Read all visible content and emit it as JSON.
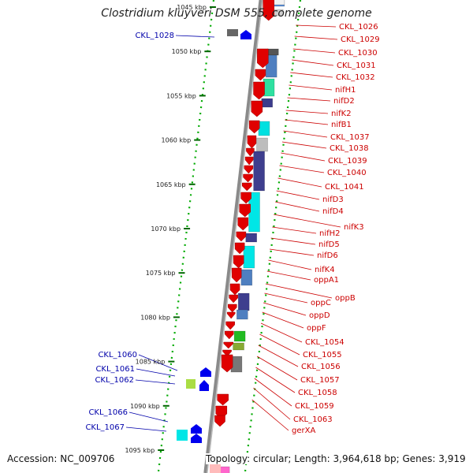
{
  "title": "Clostridium kluyveri DSM 555, complete genome",
  "footer": {
    "accession": "Accession: NC_009706",
    "stats": "Topology: circular; Length: 3,964,618 bp; Genes: 3,919"
  },
  "ticks": [
    "1045 kbp",
    "1050 kbp",
    "1055 kbp",
    "1060 kbp",
    "1065 kbp",
    "1070 kbp",
    "1075 kbp",
    "1080 kbp",
    "1085 kbp",
    "1090 kbp",
    "1095 kbp"
  ],
  "left_labels": [
    "CKL_1028",
    "CKL_1060",
    "CKL_1061",
    "CKL_1062",
    "CKL_1066",
    "CKL_1067"
  ],
  "right_labels": [
    "CKL_1026",
    "CKL_1029",
    "CKL_1030",
    "CKL_1031",
    "CKL_1032",
    "nifH1",
    "nifD2",
    "nifK2",
    "nifB1",
    "CKL_1037",
    "CKL_1038",
    "CKL_1039",
    "CKL_1040",
    "CKL_1041",
    "nifD3",
    "nifD4",
    "nifK3",
    "nifH2",
    "nifD5",
    "nifD6",
    "nifK4",
    "oppA1",
    "oppB",
    "oppC",
    "oppD",
    "oppF",
    "CKL_1054",
    "CKL_1055",
    "CKL_1056",
    "CKL_1057",
    "CKL_1058",
    "CKL_1059",
    "CKL_1063",
    "gerXA"
  ],
  "colors": {
    "backbone": "#8a8a8a",
    "forward_gene": "#e00000",
    "reverse_gene": "#0000ee",
    "right_label": "#cc0000",
    "left_label": "#0000aa",
    "tick_mark": "#00aa00"
  }
}
